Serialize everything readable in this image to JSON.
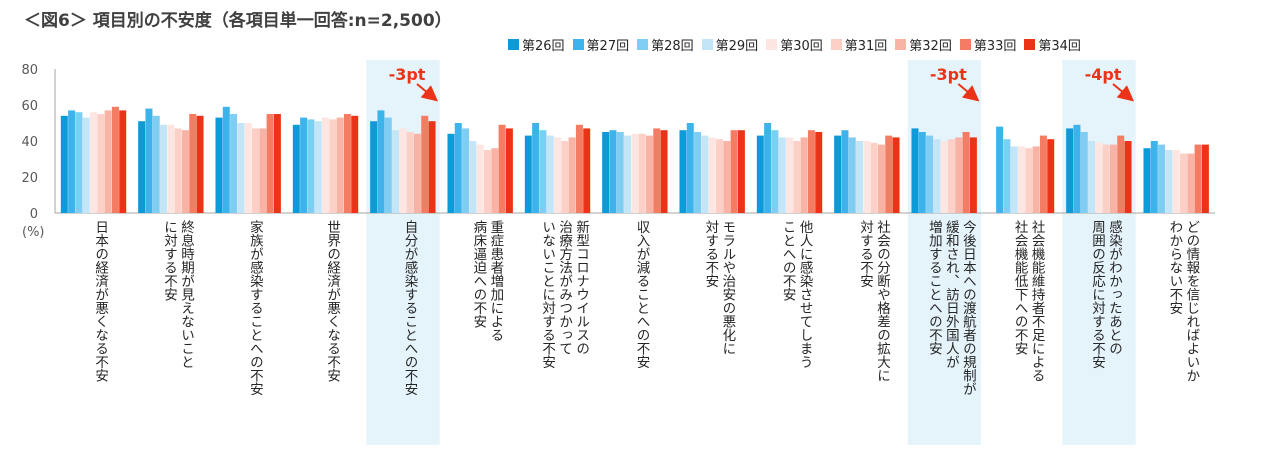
{
  "title": "＜図6＞ 項目別の不安度（各項目単一回答:n=2,500）",
  "chart_data": {
    "type": "bar",
    "y_unit": "(%)",
    "ylim": [
      0,
      80
    ],
    "yticks": [
      0,
      20,
      40,
      60,
      80
    ],
    "series": [
      {
        "name": "第26回",
        "color": "#0d9ad8",
        "values": [
          54,
          51,
          53,
          49,
          51,
          44,
          43,
          45,
          46,
          43,
          43,
          47,
          null,
          47,
          36
        ]
      },
      {
        "name": "第27回",
        "color": "#3db3ec",
        "values": [
          57,
          58,
          59,
          53,
          57,
          50,
          50,
          46,
          50,
          50,
          46,
          45,
          48,
          49,
          40
        ]
      },
      {
        "name": "第28回",
        "color": "#7fcdf3",
        "values": [
          56,
          54,
          55,
          52,
          53,
          47,
          46,
          45,
          45,
          46,
          42,
          43,
          41,
          45,
          38
        ]
      },
      {
        "name": "第29回",
        "color": "#c2e5f7",
        "values": [
          53,
          49,
          50,
          51,
          46,
          40,
          43,
          43,
          43,
          42,
          40,
          41,
          37,
          40,
          35
        ]
      },
      {
        "name": "第30回",
        "color": "#fde6e1",
        "values": [
          56,
          49,
          50,
          53,
          47,
          38,
          42,
          44,
          42,
          42,
          40,
          40,
          37,
          39,
          35
        ]
      },
      {
        "name": "第31回",
        "color": "#fcd0c6",
        "values": [
          55,
          47,
          47,
          52,
          45,
          35,
          40,
          44,
          41,
          40,
          39,
          41,
          36,
          38,
          33
        ]
      },
      {
        "name": "第32回",
        "color": "#f8b3a4",
        "values": [
          57,
          46,
          47,
          53,
          44,
          36,
          42,
          43,
          40,
          42,
          38,
          42,
          37,
          38,
          33
        ]
      },
      {
        "name": "第33回",
        "color": "#f47c63",
        "values": [
          59,
          55,
          55,
          55,
          54,
          49,
          49,
          47,
          46,
          46,
          43,
          45,
          43,
          43,
          38
        ]
      },
      {
        "name": "第34回",
        "color": "#ea3317",
        "values": [
          57,
          54,
          55,
          54,
          51,
          47,
          47,
          46,
          46,
          45,
          42,
          42,
          41,
          40,
          38
        ]
      }
    ],
    "categories": [
      "日本の経済が悪くなる不安",
      "終息時期が見えないこと\nに対する不安",
      "家族が感染することへの不安",
      "世界の経済が悪くなる不安",
      "自分が感染することへの不安",
      "重症患者増加による\n病床逼迫への不安",
      "新型コロナウイルスの\n治療方法がみつかって\nいないことに対する不安",
      "収入が減ることへの不安",
      "モラルや治安の悪化に\n対する不安",
      "他人に感染させてしまう\nことへの不安",
      "社会の分断や格差の拡大に\n対する不安",
      "今後日本への渡航者の規制が\n緩和され、訪日外国人が\n増加することへの不安",
      "社会機能維持者不足による\n社会機能低下への不安",
      "感染がわかったあとの\n周囲の反応に対する不安",
      "どの情報を信じればよいか\nわからない不安"
    ],
    "highlighted_categories": [
      4,
      11,
      13
    ],
    "annotations": [
      {
        "category_index": 4,
        "text": "-3pt"
      },
      {
        "category_index": 11,
        "text": "-3pt"
      },
      {
        "category_index": 13,
        "text": "-4pt"
      }
    ],
    "accent_color": "#ea3317",
    "highlight_color": "#e5f3fb"
  }
}
